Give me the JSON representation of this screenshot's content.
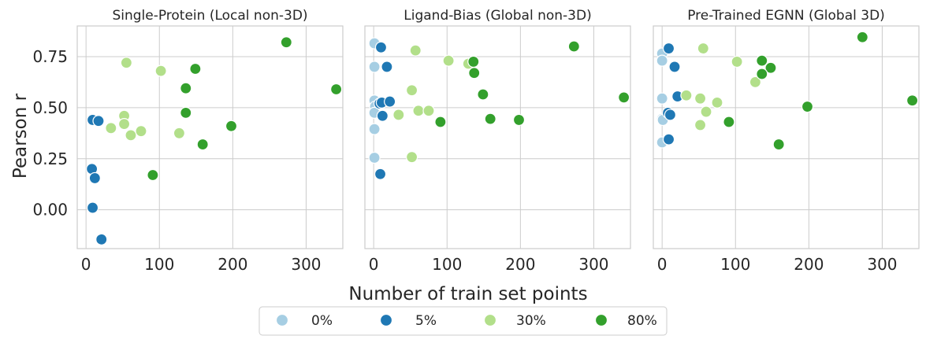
{
  "figure": {
    "xlabel": "Number of train set points",
    "ylabel": "Pearson r"
  },
  "legend": {
    "entries": [
      {
        "label": "0%",
        "color": "#a6cee3"
      },
      {
        "label": "5%",
        "color": "#1f78b4"
      },
      {
        "label": "30%",
        "color": "#b2df8a"
      },
      {
        "label": "80%",
        "color": "#33a02c"
      }
    ],
    "location": "bottom-center"
  },
  "chart_data": [
    {
      "type": "scatter",
      "title": "Single-Protein (Local non-3D)",
      "xlim": [
        -12,
        350
      ],
      "ylim": [
        -0.19,
        0.9
      ],
      "xticks": [
        0,
        100,
        200,
        300
      ],
      "yticks": [
        0.0,
        0.25,
        0.5,
        0.75
      ],
      "ytick_labels": [
        "0.00",
        "0.25",
        "0.50",
        "0.75"
      ],
      "show_yticklabels": true,
      "series": [
        {
          "name": "0%",
          "points": []
        },
        {
          "name": "5%",
          "points": [
            [
              9,
              0.44
            ],
            [
              17,
              0.435
            ],
            [
              8,
              0.2
            ],
            [
              12,
              0.155
            ],
            [
              9,
              0.01
            ],
            [
              21,
              -0.145
            ]
          ]
        },
        {
          "name": "30%",
          "points": [
            [
              55,
              0.72
            ],
            [
              102,
              0.68
            ],
            [
              52,
              0.46
            ],
            [
              52,
              0.42
            ],
            [
              34,
              0.4
            ],
            [
              61,
              0.365
            ],
            [
              75,
              0.385
            ],
            [
              127,
              0.375
            ]
          ]
        },
        {
          "name": "80%",
          "points": [
            [
              273,
              0.82
            ],
            [
              149,
              0.69
            ],
            [
              136,
              0.595
            ],
            [
              341,
              0.59
            ],
            [
              136,
              0.475
            ],
            [
              198,
              0.41
            ],
            [
              159,
              0.32
            ],
            [
              91,
              0.17
            ]
          ]
        }
      ]
    },
    {
      "type": "scatter",
      "title": "Ligand-Bias (Global non-3D)",
      "xlim": [
        -12,
        350
      ],
      "ylim": [
        -0.19,
        0.9
      ],
      "xticks": [
        0,
        100,
        200,
        300
      ],
      "yticks": [
        0.0,
        0.25,
        0.5,
        0.75
      ],
      "show_yticklabels": false,
      "series": [
        {
          "name": "0%",
          "points": [
            [
              1,
              0.815
            ],
            [
              1,
              0.7
            ],
            [
              1,
              0.535
            ],
            [
              2,
              0.505
            ],
            [
              1,
              0.475
            ],
            [
              1,
              0.395
            ],
            [
              1,
              0.255
            ]
          ]
        },
        {
          "name": "5%",
          "points": [
            [
              10,
              0.795
            ],
            [
              18,
              0.7
            ],
            [
              8,
              0.52
            ],
            [
              11,
              0.525
            ],
            [
              22,
              0.53
            ],
            [
              12,
              0.46
            ],
            [
              9,
              0.175
            ]
          ]
        },
        {
          "name": "30%",
          "points": [
            [
              57,
              0.78
            ],
            [
              102,
              0.73
            ],
            [
              129,
              0.715
            ],
            [
              52,
              0.585
            ],
            [
              61,
              0.485
            ],
            [
              75,
              0.485
            ],
            [
              34,
              0.465
            ],
            [
              52,
              0.258
            ]
          ]
        },
        {
          "name": "80%",
          "points": [
            [
              273,
              0.8
            ],
            [
              136,
              0.725
            ],
            [
              137,
              0.67
            ],
            [
              149,
              0.565
            ],
            [
              341,
              0.55
            ],
            [
              159,
              0.445
            ],
            [
              198,
              0.44
            ],
            [
              91,
              0.43
            ]
          ]
        }
      ]
    },
    {
      "type": "scatter",
      "title": "Pre-Trained EGNN (Global 3D)",
      "xlim": [
        -12,
        350
      ],
      "ylim": [
        -0.19,
        0.9
      ],
      "xticks": [
        0,
        100,
        200,
        300
      ],
      "yticks": [
        0.0,
        0.25,
        0.5,
        0.75
      ],
      "show_yticklabels": false,
      "series": [
        {
          "name": "0%",
          "points": [
            [
              0,
              0.765
            ],
            [
              0,
              0.73
            ],
            [
              0,
              0.545
            ],
            [
              0,
              0.445
            ],
            [
              1,
              0.44
            ],
            [
              0,
              0.33
            ]
          ]
        },
        {
          "name": "5%",
          "points": [
            [
              9,
              0.79
            ],
            [
              17,
              0.7
            ],
            [
              21,
              0.555
            ],
            [
              8,
              0.475
            ],
            [
              11,
              0.465
            ],
            [
              9,
              0.345
            ]
          ]
        },
        {
          "name": "30%",
          "points": [
            [
              56,
              0.79
            ],
            [
              102,
              0.725
            ],
            [
              127,
              0.625
            ],
            [
              33,
              0.56
            ],
            [
              52,
              0.545
            ],
            [
              75,
              0.525
            ],
            [
              60,
              0.48
            ],
            [
              52,
              0.415
            ]
          ]
        },
        {
          "name": "80%",
          "points": [
            [
              273,
              0.845
            ],
            [
              136,
              0.73
            ],
            [
              148,
              0.695
            ],
            [
              136,
              0.665
            ],
            [
              341,
              0.535
            ],
            [
              198,
              0.505
            ],
            [
              91,
              0.43
            ],
            [
              159,
              0.32
            ]
          ]
        }
      ]
    }
  ]
}
